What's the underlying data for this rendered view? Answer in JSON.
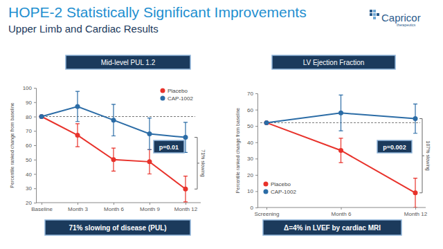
{
  "header": {
    "title": "HOPE-2 Statistically Significant Improvements",
    "subtitle": "Upper Limb and Cardiac Results",
    "logo": "Capricor",
    "logo_tagline": "therapeutics"
  },
  "chart_data": [
    {
      "type": "line",
      "title": "Mid-level PUL 1.2",
      "y_label": "Percentile ranked change from baseline",
      "categories": [
        "Baseline",
        "Month 3",
        "Month 6",
        "Month 9",
        "Month 12"
      ],
      "series": [
        {
          "name": "Placebo",
          "color": "#e8322b",
          "values": [
            80,
            67,
            50,
            48.5,
            29.5
          ],
          "errors": [
            null,
            8,
            8,
            8.5,
            9
          ]
        },
        {
          "name": "CAP-1002",
          "color": "#2b6ca6",
          "values": [
            80,
            87,
            77.5,
            68,
            65.5
          ],
          "errors": [
            null,
            10.5,
            11,
            11,
            10.5
          ]
        }
      ],
      "reference": 80,
      "ylim": [
        20,
        100
      ],
      "yticks": [
        20,
        30,
        40,
        50,
        60,
        70,
        80,
        90,
        100
      ],
      "marker": "circle",
      "legend": "upper right",
      "grid": false,
      "annotations": [
        {
          "text": "p=0.01"
        },
        {
          "text": "71% slowing"
        }
      ],
      "footer": "71% slowing of disease (PUL)"
    },
    {
      "type": "line",
      "title": "LV Ejection Fraction",
      "y_label": "Percentile ranked change from baseline",
      "categories": [
        "Screening",
        "Month 6",
        "Month 12"
      ],
      "series": [
        {
          "name": "Placebo",
          "color": "#e8322b",
          "values": [
            52,
            35,
            9
          ],
          "errors": [
            null,
            7.5,
            9
          ]
        },
        {
          "name": "CAP-1002",
          "color": "#2b6ca6",
          "values": [
            52,
            58,
            54.5
          ],
          "errors": [
            null,
            11,
            9
          ]
        }
      ],
      "reference": 52,
      "ylim": [
        0,
        70
      ],
      "yticks": [
        0,
        10,
        20,
        30,
        40,
        50,
        60,
        70
      ],
      "marker": "circle",
      "legend": "lower left",
      "grid": false,
      "annotations": [
        {
          "text": "p=0.002"
        },
        {
          "text": "107% slowing"
        }
      ],
      "footer": "Δ=4% in LVEF by cardiac MRI"
    }
  ]
}
